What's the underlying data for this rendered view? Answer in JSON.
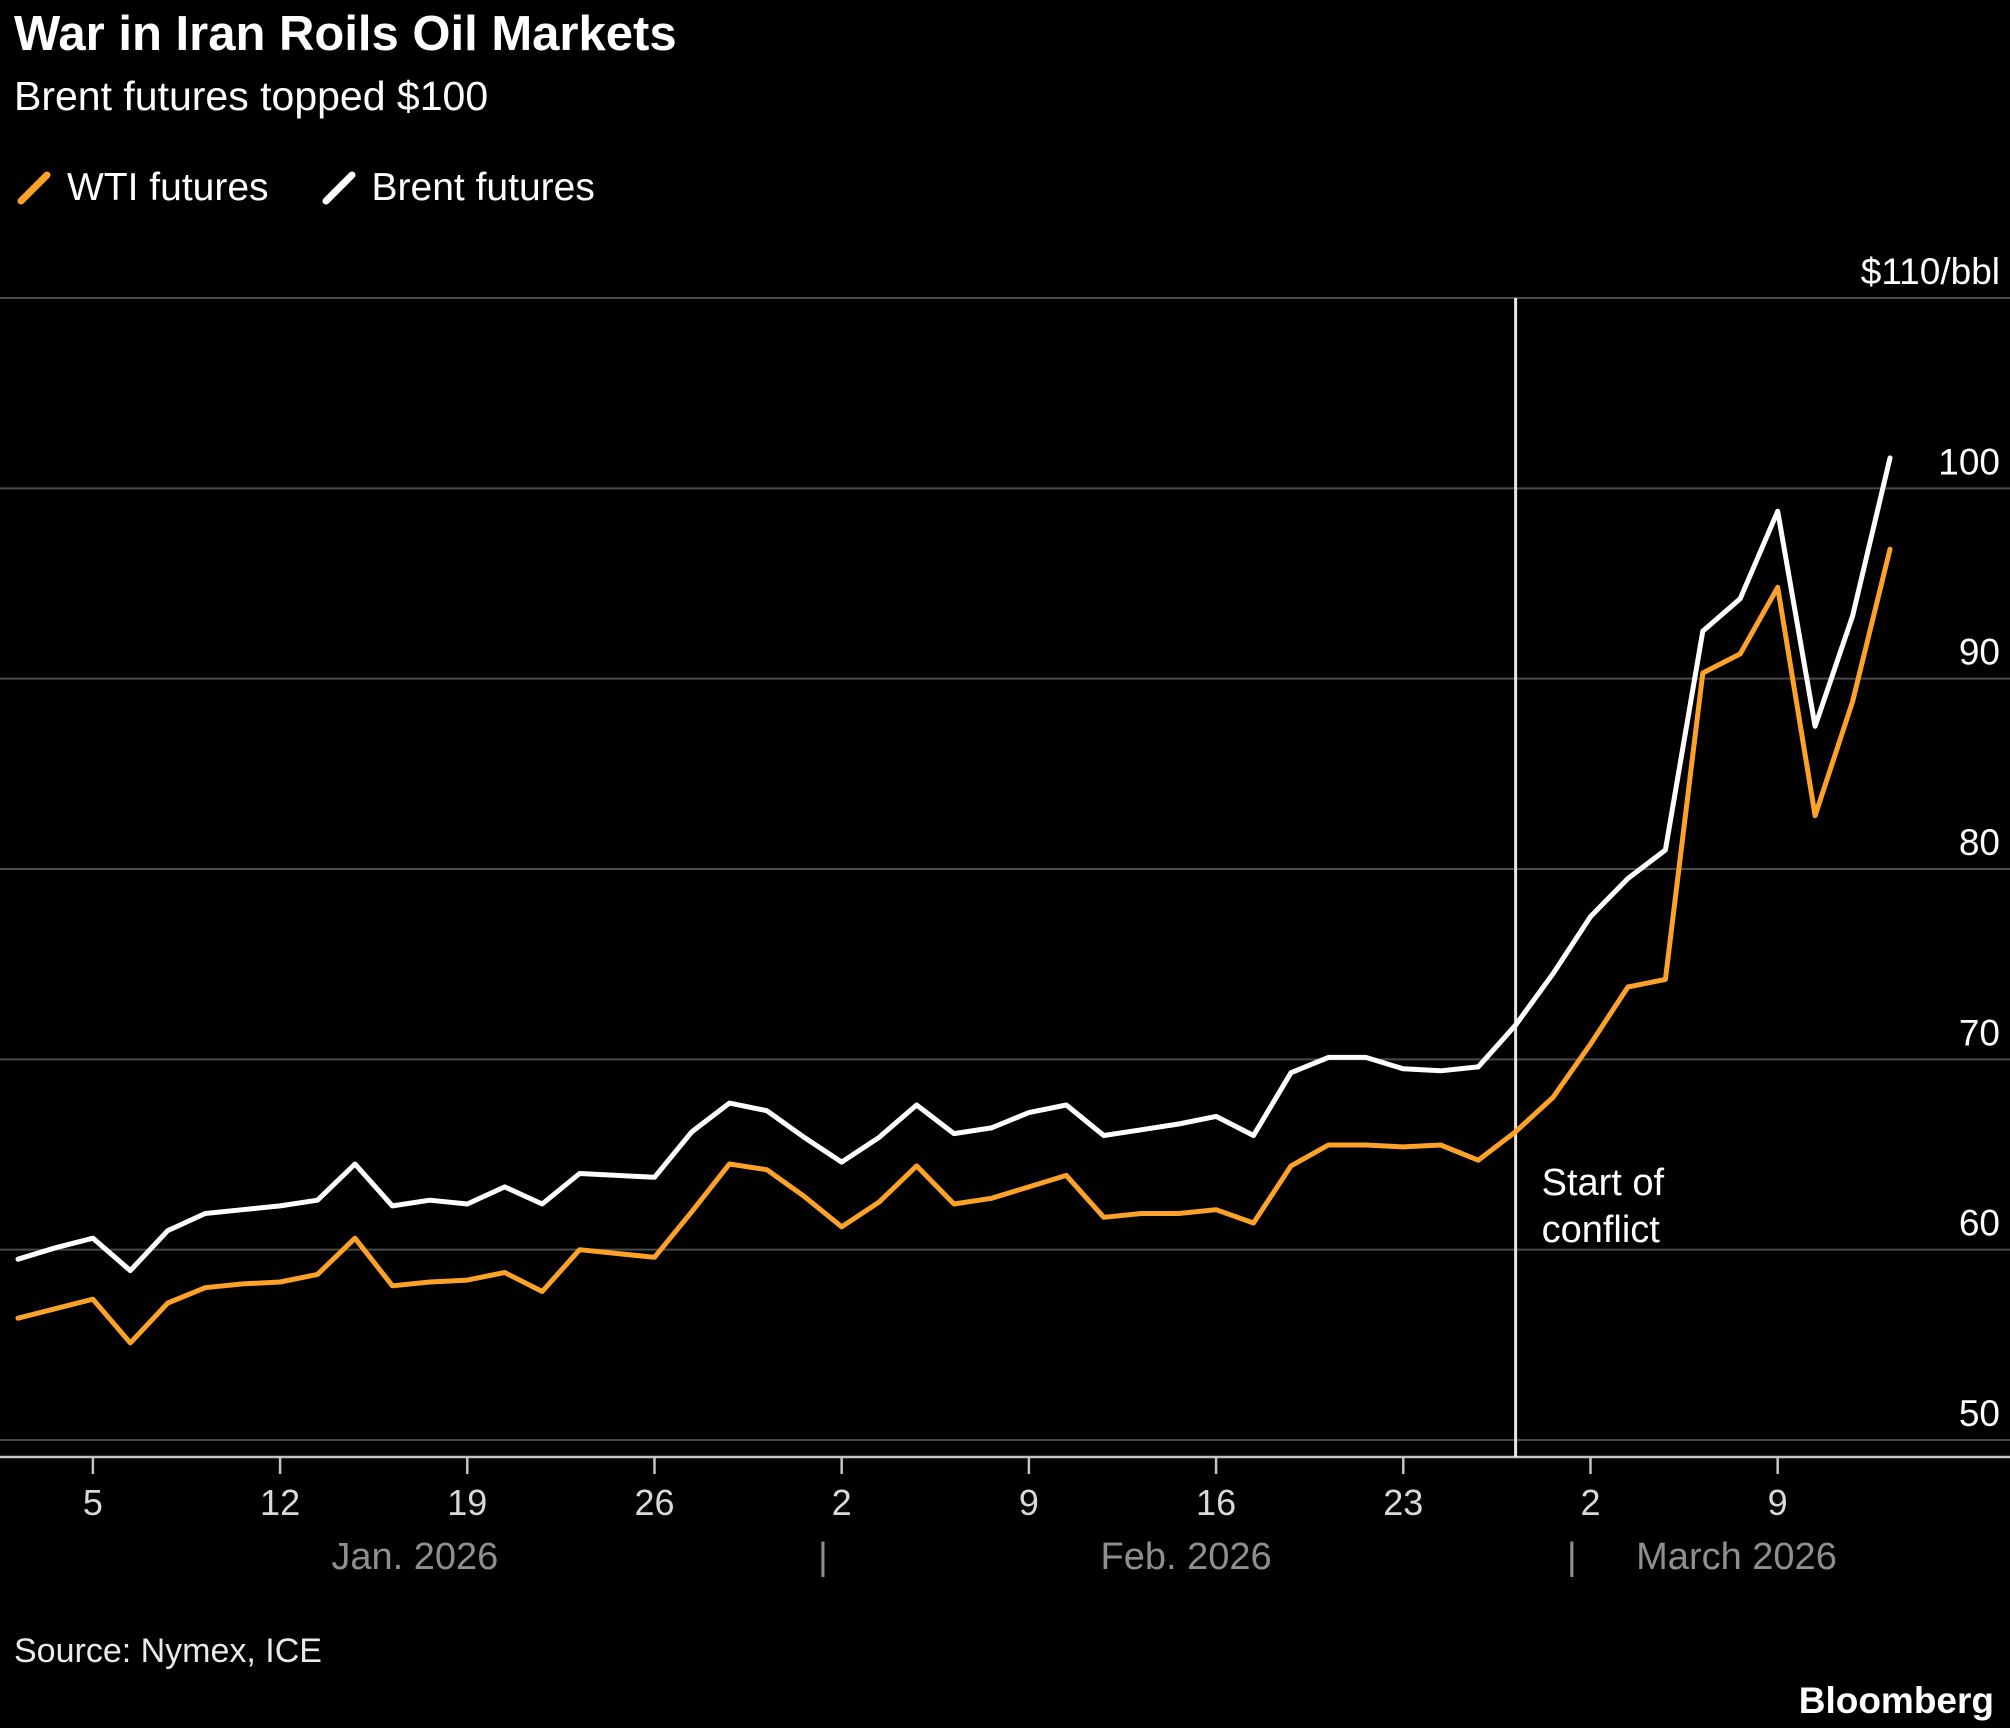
{
  "header": {
    "title": "War in Iran Roils Oil Markets",
    "subtitle": "Brent futures topped $100"
  },
  "legend": {
    "items": [
      {
        "id": "wti",
        "label": "WTI futures",
        "color": "#FCA228"
      },
      {
        "id": "brent",
        "label": "Brent futures",
        "color": "#FFFFFF"
      }
    ]
  },
  "chart_data": {
    "type": "line",
    "title": "War in Iran Roils Oil Markets",
    "subtitle": "Brent futures topped $100",
    "unit_label": "$110/bbl",
    "ylim": [
      50,
      110
    ],
    "grid": true,
    "legend_position": "top-left",
    "gridlines": [
      50,
      60,
      70,
      80,
      90,
      100,
      110
    ],
    "yticks": [
      100,
      90,
      80,
      70,
      60,
      50
    ],
    "x_ticks": [
      {
        "index": 2,
        "label": "5"
      },
      {
        "index": 7,
        "label": "12"
      },
      {
        "index": 12,
        "label": "19"
      },
      {
        "index": 17,
        "label": "26"
      },
      {
        "index": 22,
        "label": "2"
      },
      {
        "index": 27,
        "label": "9"
      },
      {
        "index": 32,
        "label": "16"
      },
      {
        "index": 37,
        "label": "23"
      },
      {
        "index": 42,
        "label": "2"
      },
      {
        "index": 47,
        "label": "9"
      }
    ],
    "x_months": [
      {
        "index": 10.6,
        "label": "Jan. 2026"
      },
      {
        "index": 21.5,
        "label": "|"
      },
      {
        "index": 31.2,
        "label": "Feb. 2026"
      },
      {
        "index": 41.5,
        "label": "|"
      },
      {
        "index": 45.9,
        "label": "March 2026"
      }
    ],
    "annotation": {
      "index": 40,
      "lines": [
        "Start of",
        "conflict"
      ]
    },
    "series": [
      {
        "id": "wti",
        "name": "WTI futures",
        "color": "#FCA228",
        "values": [
          56.4,
          56.9,
          57.4,
          55.1,
          57.2,
          58.0,
          58.2,
          58.3,
          58.7,
          60.6,
          58.1,
          58.3,
          58.4,
          58.8,
          57.8,
          60.0,
          59.8,
          59.6,
          62.0,
          64.5,
          64.2,
          62.8,
          61.2,
          62.5,
          64.4,
          62.4,
          62.7,
          63.3,
          63.9,
          61.7,
          61.9,
          61.9,
          62.1,
          61.4,
          64.4,
          65.5,
          65.5,
          65.4,
          65.5,
          64.7,
          66.2,
          68.0,
          70.8,
          73.8,
          74.2,
          90.3,
          91.3,
          94.8,
          82.8,
          88.8,
          96.8
        ]
      },
      {
        "id": "brent",
        "name": "Brent futures",
        "color": "#FFFFFF",
        "values": [
          59.5,
          60.1,
          60.6,
          58.9,
          61.0,
          61.9,
          62.1,
          62.3,
          62.6,
          64.5,
          62.3,
          62.6,
          62.4,
          63.3,
          62.4,
          64.0,
          63.9,
          63.8,
          66.2,
          67.7,
          67.3,
          65.9,
          64.6,
          65.9,
          67.6,
          66.1,
          66.4,
          67.2,
          67.6,
          66.0,
          66.3,
          66.6,
          67.0,
          66.0,
          69.3,
          70.1,
          70.1,
          69.5,
          69.4,
          69.6,
          71.8,
          74.5,
          77.5,
          79.5,
          81.0,
          92.5,
          94.2,
          98.8,
          87.5,
          93.3,
          101.6
        ]
      }
    ],
    "colors": {
      "background": "#000000",
      "grid": "#4a4a4a",
      "axis": "#c4c4c4",
      "tick_label": "#d9d9d9",
      "month_label": "#8f8f8f",
      "y_label": "#ffffff",
      "event_line": "#e6e6e6",
      "annotation_text": "#ffffff"
    }
  },
  "footer": {
    "source": "Source: Nymex, ICE",
    "brand": "Bloomberg"
  }
}
